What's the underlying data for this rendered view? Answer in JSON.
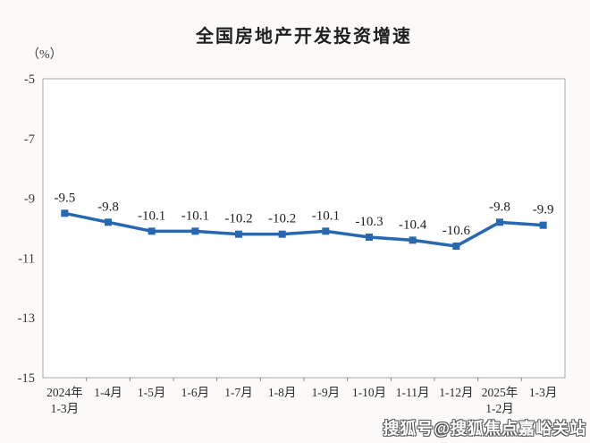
{
  "chart_data": {
    "type": "line",
    "title": "全国房地产开发投资增速",
    "ylabel": "（%）",
    "xlabel": "",
    "categories": [
      [
        "2024年",
        "1-3月"
      ],
      [
        "1-4月"
      ],
      [
        "1-5月"
      ],
      [
        "1-6月"
      ],
      [
        "1-7月"
      ],
      [
        "1-8月"
      ],
      [
        "1-9月"
      ],
      [
        "1-10月"
      ],
      [
        "1-11月"
      ],
      [
        "1-12月"
      ],
      [
        "2025年",
        "1-2月"
      ],
      [
        "1-3月"
      ]
    ],
    "values": [
      -9.5,
      -9.8,
      -10.1,
      -10.1,
      -10.2,
      -10.2,
      -10.1,
      -10.3,
      -10.4,
      -10.6,
      -9.8,
      -9.9
    ],
    "data_labels": [
      "-9.5",
      "-9.8",
      "-10.1",
      "-10.1",
      "-10.2",
      "-10.2",
      "-10.1",
      "-10.3",
      "-10.4",
      "-10.6",
      "-9.8",
      "-9.9"
    ],
    "ylim": [
      -15,
      -5
    ],
    "y_ticks": [
      -5,
      -7,
      -9,
      -11,
      -13,
      -15
    ],
    "grid": false,
    "legend_position": "none",
    "line_color": "#2768b0",
    "marker": "square",
    "border_color": "#a8a8a8",
    "text_color": "#2b2b2b"
  },
  "watermark": {
    "text": "搜狐号@搜狐焦点嘉峪关站"
  }
}
